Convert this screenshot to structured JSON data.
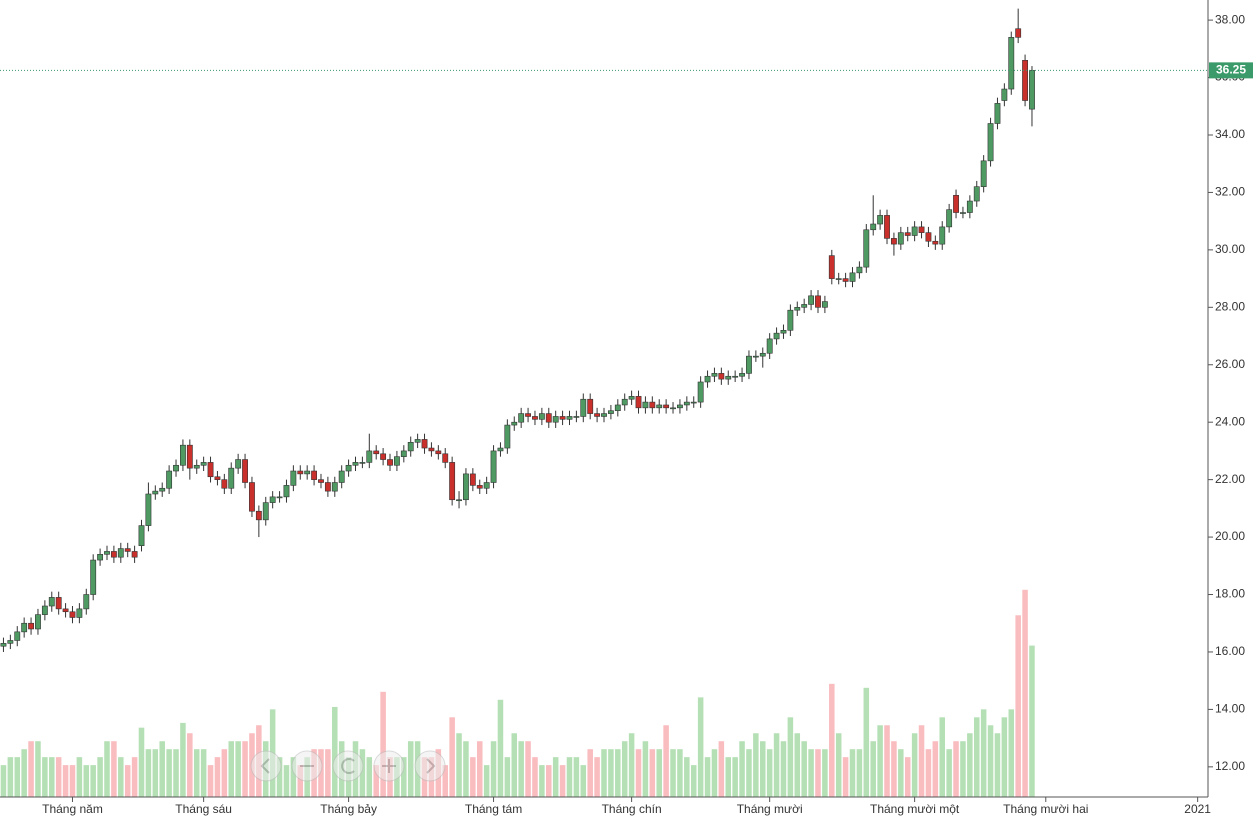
{
  "chart_data": {
    "type": "candlestick",
    "categories": [
      null,
      null,
      null,
      null,
      null,
      null,
      null,
      null,
      null,
      null,
      "Tháng năm",
      null,
      null,
      null,
      null,
      null,
      null,
      null,
      null,
      null,
      null,
      null,
      null,
      null,
      null,
      null,
      null,
      null,
      null,
      "Tháng sáu",
      null,
      null,
      null,
      null,
      null,
      null,
      null,
      null,
      null,
      null,
      null,
      null,
      null,
      null,
      null,
      null,
      null,
      null,
      null,
      null,
      "Tháng bảy",
      null,
      null,
      null,
      null,
      null,
      null,
      null,
      null,
      null,
      null,
      null,
      null,
      null,
      null,
      null,
      null,
      null,
      null,
      null,
      null,
      "Tháng tám",
      null,
      null,
      null,
      null,
      null,
      null,
      null,
      null,
      null,
      null,
      null,
      null,
      null,
      null,
      null,
      null,
      null,
      null,
      null,
      "Tháng chín",
      null,
      null,
      null,
      null,
      null,
      null,
      null,
      null,
      null,
      null,
      null,
      null,
      null,
      null,
      null,
      null,
      null,
      null,
      null,
      "Tháng mười",
      null,
      null,
      null,
      null,
      null,
      null,
      null,
      null,
      null,
      null,
      null,
      null,
      null,
      null,
      null,
      null,
      null,
      null,
      null,
      null,
      "Tháng mười một",
      null,
      null,
      null,
      null,
      null,
      null,
      null,
      null,
      null,
      null,
      null,
      null,
      null,
      null,
      null,
      null,
      null,
      null,
      "Tháng mười hai",
      null,
      null,
      null,
      null,
      null,
      null,
      null,
      null,
      null,
      null,
      null,
      null,
      null,
      null,
      null,
      null,
      null,
      null,
      null,
      null,
      null,
      "2021",
      null
    ],
    "open": [
      16.2,
      16.3,
      16.4,
      16.7,
      17.0,
      16.8,
      17.3,
      17.6,
      17.9,
      17.5,
      17.4,
      17.2,
      17.5,
      18.0,
      19.2,
      19.4,
      19.5,
      19.3,
      19.6,
      19.5,
      19.7,
      20.4,
      21.5,
      21.6,
      21.7,
      22.3,
      22.5,
      23.2,
      22.4,
      22.5,
      22.6,
      22.1,
      22.0,
      21.7,
      22.4,
      22.7,
      21.9,
      20.9,
      20.6,
      21.2,
      21.4,
      21.4,
      21.8,
      22.3,
      22.2,
      22.3,
      22.0,
      21.9,
      21.6,
      21.9,
      22.3,
      22.5,
      22.6,
      22.6,
      23.0,
      22.9,
      22.7,
      22.5,
      22.8,
      23.0,
      23.3,
      23.4,
      23.1,
      23.0,
      22.9,
      22.6,
      21.3,
      21.3,
      22.2,
      21.8,
      21.7,
      21.9,
      23.0,
      23.1,
      23.9,
      24.0,
      24.3,
      24.2,
      24.1,
      24.3,
      24.0,
      24.2,
      24.1,
      24.2,
      24.2,
      24.8,
      24.3,
      24.2,
      24.3,
      24.4,
      24.6,
      24.8,
      24.9,
      24.5,
      24.7,
      24.5,
      24.6,
      24.5,
      24.5,
      24.6,
      24.7,
      24.7,
      25.4,
      25.6,
      25.7,
      25.5,
      25.6,
      25.6,
      25.7,
      26.3,
      26.3,
      26.4,
      26.9,
      27.1,
      27.2,
      27.9,
      28.0,
      28.1,
      28.4,
      28.0,
      29.8,
      29.0,
      29.0,
      28.9,
      29.2,
      29.4,
      30.7,
      30.9,
      31.2,
      30.4,
      30.2,
      30.6,
      30.5,
      30.8,
      30.6,
      30.3,
      30.2,
      30.8,
      31.9,
      31.3,
      31.3,
      31.7,
      32.2,
      33.1,
      34.4,
      35.2,
      35.6,
      37.7,
      36.6,
      34.9,
      null,
      null,
      null,
      null,
      null,
      null,
      null,
      null,
      null,
      null,
      null,
      null,
      null,
      null,
      null,
      null,
      null,
      null,
      null,
      null,
      null,
      null,
      null,
      null,
      null
    ],
    "high": [
      16.5,
      16.6,
      16.9,
      17.2,
      17.2,
      17.5,
      17.8,
      18.1,
      18.1,
      17.7,
      17.6,
      17.7,
      18.2,
      19.4,
      19.6,
      19.7,
      19.7,
      19.8,
      19.8,
      19.7,
      20.6,
      21.9,
      21.8,
      21.9,
      22.5,
      22.7,
      23.4,
      23.4,
      22.7,
      22.8,
      22.8,
      22.3,
      22.2,
      22.6,
      22.9,
      22.9,
      22.1,
      21.1,
      21.4,
      21.6,
      21.6,
      22.0,
      22.5,
      22.5,
      22.5,
      22.5,
      22.2,
      22.1,
      22.1,
      22.5,
      22.7,
      22.8,
      22.8,
      23.6,
      23.2,
      23.1,
      22.9,
      23.0,
      23.2,
      23.5,
      23.6,
      23.6,
      23.3,
      23.2,
      23.1,
      22.8,
      21.6,
      22.4,
      22.4,
      22.0,
      22.1,
      23.2,
      23.3,
      24.1,
      24.2,
      24.5,
      24.5,
      24.4,
      24.5,
      24.5,
      24.4,
      24.4,
      24.4,
      24.4,
      25.0,
      25.0,
      24.5,
      24.5,
      24.6,
      24.8,
      25.0,
      25.1,
      25.1,
      24.9,
      24.9,
      24.8,
      24.8,
      24.7,
      24.8,
      24.9,
      24.9,
      25.6,
      25.8,
      25.9,
      25.9,
      25.8,
      25.8,
      25.9,
      26.5,
      26.5,
      26.6,
      27.1,
      27.3,
      27.4,
      28.1,
      28.2,
      28.3,
      28.6,
      28.6,
      28.4,
      30.0,
      29.2,
      29.2,
      29.4,
      29.6,
      30.9,
      31.9,
      31.4,
      31.4,
      30.6,
      30.8,
      30.8,
      31.0,
      31.0,
      30.8,
      30.5,
      31.0,
      31.6,
      32.1,
      31.5,
      31.9,
      32.4,
      33.3,
      34.6,
      35.3,
      35.8,
      37.6,
      38.4,
      36.8,
      36.4,
      null,
      null,
      null,
      null,
      null,
      null,
      null,
      null,
      null,
      null,
      null,
      null,
      null,
      null,
      null,
      null,
      null,
      null,
      null,
      null,
      null,
      null,
      null,
      null,
      null
    ],
    "low": [
      16.0,
      16.1,
      16.2,
      16.5,
      16.6,
      16.6,
      17.1,
      17.4,
      17.3,
      17.2,
      17.0,
      17.0,
      17.3,
      17.8,
      19.0,
      19.2,
      19.1,
      19.1,
      19.3,
      19.1,
      19.5,
      20.2,
      21.3,
      21.4,
      21.5,
      22.1,
      22.3,
      22.0,
      22.2,
      22.3,
      21.9,
      21.8,
      21.5,
      21.5,
      22.2,
      21.7,
      20.7,
      20.0,
      20.4,
      21.0,
      21.2,
      21.2,
      21.6,
      22.0,
      22.0,
      21.8,
      21.7,
      21.4,
      21.4,
      21.7,
      22.1,
      22.3,
      22.4,
      22.4,
      22.7,
      22.5,
      22.3,
      22.3,
      22.6,
      22.8,
      23.1,
      22.9,
      22.8,
      22.7,
      22.4,
      21.1,
      21.0,
      21.1,
      21.6,
      21.5,
      21.5,
      21.7,
      22.8,
      22.9,
      23.7,
      23.8,
      24.0,
      23.9,
      23.9,
      23.8,
      23.8,
      23.9,
      23.9,
      24.0,
      24.0,
      24.1,
      24.0,
      24.0,
      24.1,
      24.2,
      24.4,
      24.6,
      24.3,
      24.3,
      24.3,
      24.3,
      24.3,
      24.3,
      24.3,
      24.4,
      24.5,
      24.5,
      25.2,
      25.4,
      25.3,
      25.3,
      25.4,
      25.4,
      25.5,
      26.1,
      25.9,
      26.2,
      26.7,
      26.9,
      27.0,
      27.7,
      27.8,
      27.9,
      27.8,
      27.8,
      28.8,
      28.8,
      28.7,
      28.7,
      29.0,
      29.2,
      30.5,
      30.7,
      30.2,
      29.8,
      30.0,
      30.3,
      30.3,
      30.4,
      30.1,
      30.0,
      30.0,
      30.6,
      31.1,
      31.1,
      31.1,
      31.5,
      32.0,
      32.9,
      34.2,
      35.0,
      35.4,
      37.2,
      35.0,
      34.3,
      null,
      null,
      null,
      null,
      null,
      null,
      null,
      null,
      null,
      null,
      null,
      null,
      null,
      null,
      null,
      null,
      null,
      null,
      null,
      null,
      null,
      null,
      null,
      null,
      null
    ],
    "close": [
      16.3,
      16.4,
      16.7,
      17.0,
      16.8,
      17.3,
      17.6,
      17.9,
      17.5,
      17.4,
      17.2,
      17.5,
      18.0,
      19.2,
      19.4,
      19.5,
      19.3,
      19.6,
      19.5,
      19.3,
      20.4,
      21.5,
      21.6,
      21.7,
      22.3,
      22.5,
      23.2,
      22.4,
      22.5,
      22.6,
      22.1,
      22.0,
      21.7,
      22.4,
      22.7,
      21.9,
      20.9,
      20.6,
      21.2,
      21.4,
      21.4,
      21.8,
      22.3,
      22.2,
      22.3,
      22.0,
      21.9,
      21.6,
      21.9,
      22.3,
      22.5,
      22.6,
      22.6,
      23.0,
      22.9,
      22.7,
      22.5,
      22.8,
      23.0,
      23.3,
      23.4,
      23.1,
      23.0,
      22.9,
      22.6,
      21.3,
      21.3,
      22.2,
      21.8,
      21.7,
      21.9,
      23.0,
      23.1,
      23.9,
      24.0,
      24.3,
      24.2,
      24.1,
      24.3,
      24.0,
      24.2,
      24.1,
      24.2,
      24.2,
      24.8,
      24.3,
      24.2,
      24.3,
      24.4,
      24.6,
      24.8,
      24.9,
      24.5,
      24.7,
      24.5,
      24.6,
      24.5,
      24.5,
      24.6,
      24.7,
      24.7,
      25.4,
      25.6,
      25.7,
      25.5,
      25.6,
      25.6,
      25.7,
      26.3,
      26.3,
      26.4,
      26.9,
      27.1,
      27.2,
      27.9,
      28.0,
      28.1,
      28.4,
      28.0,
      28.2,
      29.0,
      29.0,
      28.9,
      29.2,
      29.4,
      30.7,
      30.9,
      31.2,
      30.4,
      30.2,
      30.6,
      30.5,
      30.8,
      30.6,
      30.3,
      30.2,
      30.8,
      31.4,
      31.3,
      31.3,
      31.7,
      32.2,
      33.1,
      34.4,
      35.1,
      35.6,
      37.4,
      37.4,
      35.2,
      36.25,
      null,
      null,
      null,
      null,
      null,
      null,
      null,
      null,
      null,
      null,
      null,
      null,
      null,
      null,
      null,
      null,
      null,
      null,
      null,
      null,
      null,
      null,
      null,
      null,
      null
    ],
    "volume": [
      4,
      5,
      5,
      6,
      7,
      7,
      5,
      5,
      5,
      4,
      4,
      5,
      4,
      4,
      5,
      7,
      7,
      5,
      4,
      5,
      8.7,
      6,
      6,
      7,
      6,
      6,
      9.3,
      8,
      6,
      6,
      4,
      5,
      6,
      7,
      7,
      7,
      8,
      9,
      7,
      11,
      5,
      4,
      5,
      4,
      5,
      6,
      6,
      6,
      11.3,
      7,
      5,
      7,
      6,
      5,
      4,
      13.2,
      5,
      5,
      5,
      7,
      7,
      5,
      5,
      6,
      4,
      10,
      8,
      7,
      5,
      7,
      4,
      7,
      12.2,
      5,
      8,
      7,
      7,
      5,
      4,
      4,
      5,
      4,
      5,
      5,
      4,
      6,
      5,
      6,
      6,
      6,
      7,
      8,
      6,
      7,
      6,
      6,
      9,
      6,
      6,
      5,
      4,
      12.5,
      5,
      6,
      7,
      5,
      5,
      7,
      6,
      8,
      7,
      6,
      8,
      7,
      10,
      8,
      7,
      6,
      6,
      6,
      14.2,
      8,
      5,
      6,
      6,
      13.7,
      7,
      9,
      9,
      7,
      6,
      5,
      8,
      9,
      6,
      7,
      10,
      6,
      7,
      7,
      8,
      10,
      11,
      9,
      8,
      10,
      11,
      22.8,
      26,
      19,
      null,
      null,
      null,
      null,
      null,
      null,
      null,
      null,
      null,
      null,
      null,
      null,
      null,
      null,
      null,
      null,
      null,
      null,
      null,
      null,
      null,
      null,
      null,
      null,
      null
    ],
    "up_color": "#4f9a63",
    "down_color": "#c9302c",
    "volume_up_color": "#b5e0b5",
    "volume_down_color": "#f9bcbf",
    "ylim": [
      10.95,
      38.7
    ],
    "yticks": [
      {
        "value": 12,
        "label": "12.00"
      },
      {
        "value": 14,
        "label": "14.00"
      },
      {
        "value": 16,
        "label": "16.00"
      },
      {
        "value": 18,
        "label": "18.00"
      },
      {
        "value": 20,
        "label": "20.00"
      },
      {
        "value": 22,
        "label": "22.00"
      },
      {
        "value": 24,
        "label": "24.00"
      },
      {
        "value": 26,
        "label": "26.00"
      },
      {
        "value": 28,
        "label": "28.00"
      },
      {
        "value": 30,
        "label": "30.00"
      },
      {
        "value": 32,
        "label": "32.00"
      },
      {
        "value": 34,
        "label": "34.00"
      },
      {
        "value": 36,
        "label": "36.00"
      },
      {
        "value": 38,
        "label": "38.00"
      }
    ],
    "y2lim": [
      0,
      100
    ],
    "last_price": 36.25,
    "last_price_color": "#3a9a6a"
  }
}
